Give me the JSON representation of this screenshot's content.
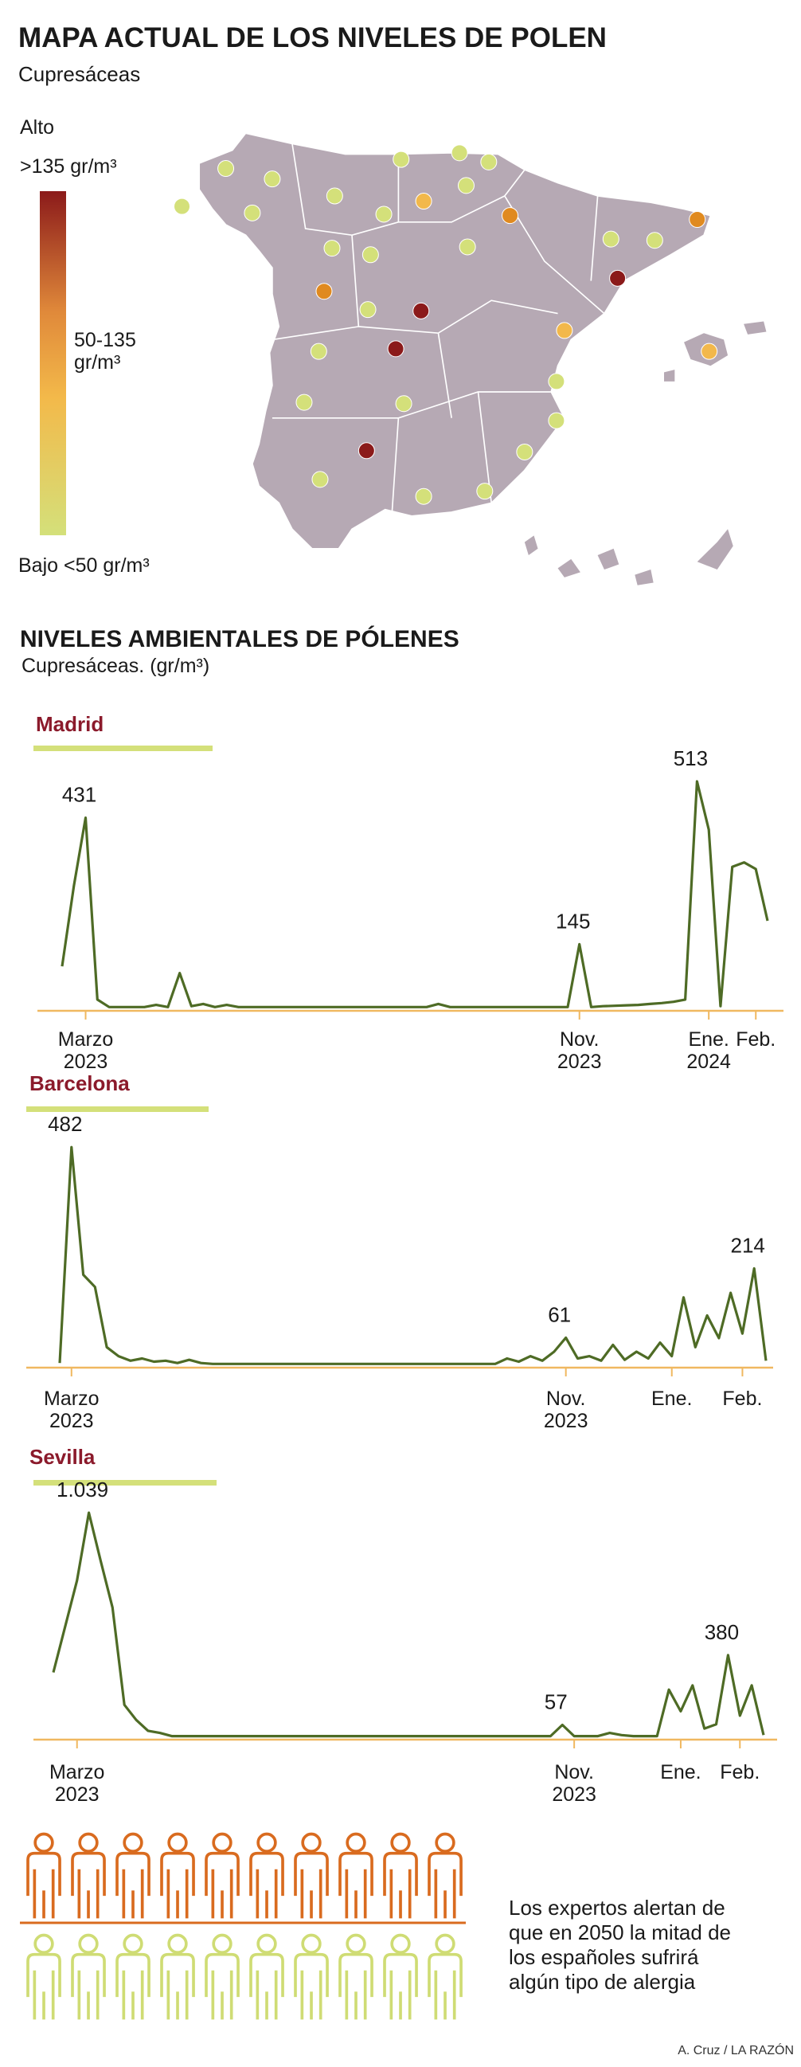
{
  "header": {
    "title": "MAPA ACTUAL DE LOS NIVELES DE POLEN",
    "subtitle": "Cupresáceas"
  },
  "map_legend": {
    "title": "Alto",
    "high": ">135 gr/m³",
    "mid": "50-135 gr/m³",
    "low": "Bajo <50 gr/m³"
  },
  "section": {
    "title": "NIVELES AMBIENTALES DE PÓLENES",
    "subtitle": "Cupresáceas. (gr/m³)"
  },
  "chart_data": [
    {
      "type": "line",
      "title": "Madrid",
      "color": "#4e6b25",
      "ylim": [
        0,
        540
      ],
      "categories": [
        null,
        null,
        "Marzo 2023",
        null,
        null,
        null,
        null,
        null,
        null,
        null,
        null,
        null,
        null,
        null,
        null,
        null,
        null,
        null,
        null,
        null,
        null,
        null,
        null,
        null,
        null,
        null,
        null,
        null,
        null,
        null,
        null,
        null,
        null,
        null,
        null,
        null,
        null,
        null,
        null,
        null,
        null,
        null,
        null,
        null,
        "Nov. 2023",
        null,
        null,
        null,
        null,
        null,
        null,
        null,
        null,
        null,
        null,
        "Ene. 2024",
        null,
        null,
        null,
        "Feb.",
        null
      ],
      "values": [
        95,
        277,
        431,
        20,
        3,
        3,
        3,
        3,
        8,
        3,
        80,
        5,
        10,
        3,
        8,
        3,
        3,
        3,
        3,
        3,
        3,
        3,
        3,
        3,
        3,
        3,
        3,
        3,
        3,
        3,
        3,
        3,
        10,
        3,
        3,
        3,
        3,
        3,
        3,
        3,
        3,
        3,
        3,
        3,
        145,
        3,
        5,
        6,
        7,
        8,
        10,
        12,
        15,
        20,
        513,
        404,
        5,
        320,
        330,
        315,
        198
      ],
      "value_labels": [
        null,
        null,
        "431",
        null,
        null,
        null,
        null,
        null,
        null,
        null,
        null,
        null,
        null,
        null,
        null,
        null,
        null,
        null,
        null,
        null,
        null,
        null,
        null,
        null,
        null,
        null,
        null,
        null,
        null,
        null,
        null,
        null,
        null,
        null,
        null,
        null,
        null,
        null,
        null,
        null,
        null,
        null,
        null,
        null,
        "145",
        null,
        null,
        null,
        null,
        null,
        null,
        null,
        null,
        null,
        "513",
        null,
        null,
        null,
        null,
        null,
        null
      ]
    },
    {
      "type": "line",
      "title": "Barcelona",
      "color": "#4e6b25",
      "ylim": [
        0,
        500
      ],
      "categories": [
        null,
        "Marzo 2023",
        null,
        null,
        null,
        null,
        null,
        null,
        null,
        null,
        null,
        null,
        null,
        null,
        null,
        null,
        null,
        null,
        null,
        null,
        null,
        null,
        null,
        null,
        null,
        null,
        null,
        null,
        null,
        null,
        null,
        null,
        null,
        null,
        null,
        null,
        null,
        null,
        null,
        null,
        null,
        null,
        null,
        "Nov. 2023",
        null,
        null,
        null,
        null,
        null,
        null,
        null,
        null,
        "Ene.",
        null,
        null,
        null,
        null,
        null,
        "Feb.",
        null,
        null
      ],
      "values": [
        5,
        482,
        200,
        173,
        40,
        20,
        10,
        15,
        8,
        10,
        5,
        12,
        5,
        3,
        3,
        3,
        3,
        3,
        3,
        3,
        3,
        3,
        3,
        3,
        3,
        3,
        3,
        3,
        3,
        3,
        3,
        3,
        3,
        3,
        3,
        3,
        3,
        3,
        15,
        8,
        20,
        10,
        30,
        61,
        15,
        20,
        10,
        45,
        12,
        30,
        15,
        50,
        20,
        150,
        40,
        110,
        60,
        160,
        70,
        214,
        10
      ],
      "value_labels": [
        null,
        "482",
        null,
        null,
        null,
        null,
        null,
        null,
        null,
        null,
        null,
        null,
        null,
        null,
        null,
        null,
        null,
        null,
        null,
        null,
        null,
        null,
        null,
        null,
        null,
        null,
        null,
        null,
        null,
        null,
        null,
        null,
        null,
        null,
        null,
        null,
        null,
        null,
        null,
        null,
        null,
        null,
        null,
        "61",
        null,
        null,
        null,
        null,
        null,
        null,
        null,
        null,
        null,
        null,
        null,
        null,
        null,
        null,
        null,
        "214",
        null
      ]
    },
    {
      "type": "line",
      "title": "Sevilla",
      "color": "#4e6b25",
      "ylim": [
        0,
        1080
      ],
      "categories": [
        null,
        null,
        "Marzo 2023",
        null,
        null,
        null,
        null,
        null,
        null,
        null,
        null,
        null,
        null,
        null,
        null,
        null,
        null,
        null,
        null,
        null,
        null,
        null,
        null,
        null,
        null,
        null,
        null,
        null,
        null,
        null,
        null,
        null,
        null,
        null,
        null,
        null,
        null,
        null,
        null,
        null,
        null,
        null,
        null,
        null,
        "Nov. 2023",
        null,
        null,
        null,
        null,
        null,
        null,
        null,
        null,
        "Ene.",
        null,
        null,
        null,
        null,
        "Feb.",
        null,
        null
      ],
      "values": [
        300,
        513,
        725,
        1039,
        815,
        600,
        150,
        80,
        30,
        20,
        5,
        5,
        5,
        5,
        5,
        5,
        5,
        5,
        5,
        5,
        5,
        5,
        5,
        5,
        5,
        5,
        5,
        5,
        5,
        5,
        5,
        5,
        5,
        5,
        5,
        5,
        5,
        5,
        5,
        5,
        5,
        5,
        5,
        57,
        5,
        5,
        5,
        20,
        10,
        5,
        5,
        5,
        220,
        120,
        240,
        40,
        60,
        380,
        100,
        240,
        10
      ],
      "value_labels": [
        null,
        null,
        null,
        "1.039",
        null,
        null,
        null,
        null,
        null,
        null,
        null,
        null,
        null,
        null,
        null,
        null,
        null,
        null,
        null,
        null,
        null,
        null,
        null,
        null,
        null,
        null,
        null,
        null,
        null,
        null,
        null,
        null,
        null,
        null,
        null,
        null,
        null,
        null,
        null,
        null,
        null,
        null,
        null,
        "57",
        null,
        null,
        null,
        null,
        null,
        null,
        null,
        null,
        null,
        null,
        null,
        null,
        null,
        "380",
        null,
        null,
        null
      ]
    }
  ],
  "note": {
    "lines": [
      "Los expertos alertan de",
      "que en 2050 la mitad de",
      "los españoles sufrirá",
      "algún tipo de alergia"
    ]
  },
  "credit": "A. Cruz / LA RAZÓN"
}
